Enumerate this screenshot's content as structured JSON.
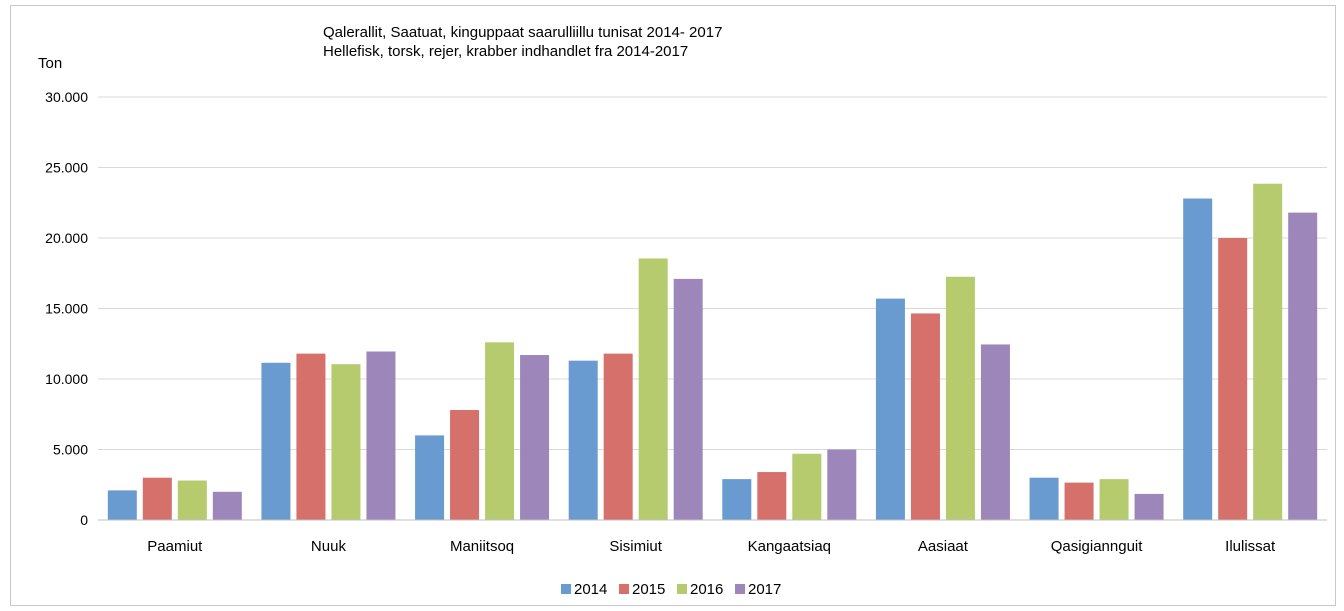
{
  "chart_data": {
    "type": "bar",
    "title": "Qalerallit, Saatuat, kinguppaat saarulliillu  tunisat  2014- 2017",
    "subtitle": "Hellefisk, torsk, rejer, krabber indhandlet fra 2014-2017",
    "ylabel": "Ton",
    "xlabel": "",
    "ylim": [
      0,
      30000
    ],
    "ytick_values": [
      0,
      5000,
      10000,
      15000,
      20000,
      25000,
      30000
    ],
    "ytick_labels": [
      "0",
      "5.000",
      "10.000",
      "15.000",
      "20.000",
      "25.000",
      "30.000"
    ],
    "grid": true,
    "legend_position": "bottom",
    "categories": [
      "Paamiut",
      "Nuuk",
      "Maniitsoq",
      "Sisimiut",
      "Kangaatsiaq",
      "Aasiaat",
      "Qasigiannguit",
      "Ilulissat"
    ],
    "series": [
      {
        "name": "2014",
        "color": "#6a9bd0",
        "values": [
          2100,
          11150,
          6000,
          11300,
          2900,
          15700,
          3000,
          22800
        ]
      },
      {
        "name": "2015",
        "color": "#d6706a",
        "values": [
          3000,
          11800,
          7800,
          11800,
          3400,
          14650,
          2650,
          20000
        ]
      },
      {
        "name": "2016",
        "color": "#b5cb6e",
        "values": [
          2800,
          11050,
          12600,
          18550,
          4700,
          17250,
          2900,
          23850
        ]
      },
      {
        "name": "2017",
        "color": "#9c86ba",
        "values": [
          2000,
          11950,
          11700,
          17100,
          5000,
          12450,
          1850,
          21800
        ]
      }
    ]
  }
}
